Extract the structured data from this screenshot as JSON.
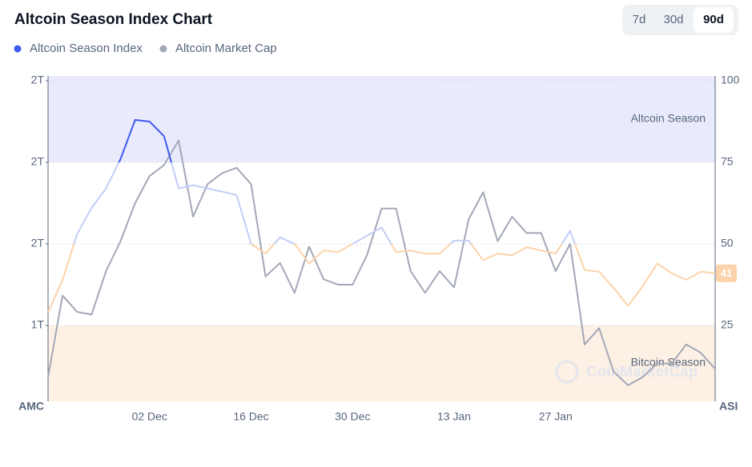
{
  "chart_data": {
    "type": "line",
    "title": "Altcoin Season Index Chart",
    "controls": {
      "ranges": [
        "7d",
        "30d",
        "90d"
      ],
      "active": "90d"
    },
    "watermark": "CoinMarketCap",
    "categories": [
      null,
      null,
      null,
      null,
      null,
      null,
      null,
      "02 Dec",
      null,
      null,
      null,
      null,
      null,
      null,
      "16 Dec",
      null,
      null,
      null,
      null,
      null,
      null,
      "30 Dec",
      null,
      null,
      null,
      null,
      null,
      null,
      "13 Jan",
      null,
      null,
      null,
      null,
      null,
      null,
      "27 Jan",
      null,
      null,
      null,
      null,
      null,
      null,
      null,
      null,
      null,
      null,
      null
    ],
    "series": [
      {
        "name": "Altcoin Season Index",
        "color": "#3d5af1",
        "line_colors": [
          {
            "above": 75,
            "color": "#3d5af1"
          },
          {
            "above": 50,
            "color": "#c3cdf7"
          },
          {
            "above": 0,
            "color": "#fcd3aa"
          }
        ],
        "values": [
          29,
          39,
          53,
          61,
          67,
          76,
          88,
          87.5,
          83,
          67,
          68,
          67,
          66,
          65,
          50,
          47,
          52,
          50,
          44,
          48,
          47.5,
          50,
          52.5,
          55,
          47.5,
          48,
          47,
          47,
          51,
          51,
          45,
          47,
          46.5,
          49,
          48,
          47,
          54,
          42,
          41.5,
          36.5,
          31,
          37,
          44,
          41,
          39,
          41.5,
          41
        ]
      },
      {
        "name": "Altcoin Market Cap",
        "color": "#a3a8b8",
        "axis": "y2",
        "values": [
          1.11,
          1.41,
          1.35,
          1.34,
          1.5,
          1.61,
          1.75,
          1.85,
          1.89,
          1.98,
          1.7,
          1.82,
          1.86,
          1.88,
          1.82,
          1.48,
          1.53,
          1.42,
          1.59,
          1.47,
          1.45,
          1.45,
          1.56,
          1.73,
          1.73,
          1.5,
          1.42,
          1.5,
          1.44,
          1.69,
          1.79,
          1.61,
          1.7,
          1.64,
          1.64,
          1.5,
          1.6,
          1.23,
          1.29,
          1.13,
          1.08,
          1.11,
          1.16,
          1.16,
          1.23,
          1.2,
          1.14
        ]
      }
    ],
    "zones": [
      {
        "name": "Altcoin Season",
        "from": 75,
        "to": 100,
        "color": "#e9ebfd"
      },
      {
        "name": "Bitcoin Season",
        "from": 0,
        "to": 25,
        "color": "#fdf0e4"
      }
    ],
    "y_label": "ASI",
    "y2_label": "AMC",
    "ylim": [
      0,
      100
    ],
    "yticks": [
      100,
      75,
      50,
      25
    ],
    "y2lim": [
      1.0,
      2.2
    ],
    "y2ticks": [
      {
        "value": 2.2,
        "label": "2T"
      },
      {
        "value": 1.9,
        "label": "2T"
      },
      {
        "value": 1.6,
        "label": "2T"
      },
      {
        "value": 1.3,
        "label": "1T"
      }
    ],
    "grid": true
  }
}
